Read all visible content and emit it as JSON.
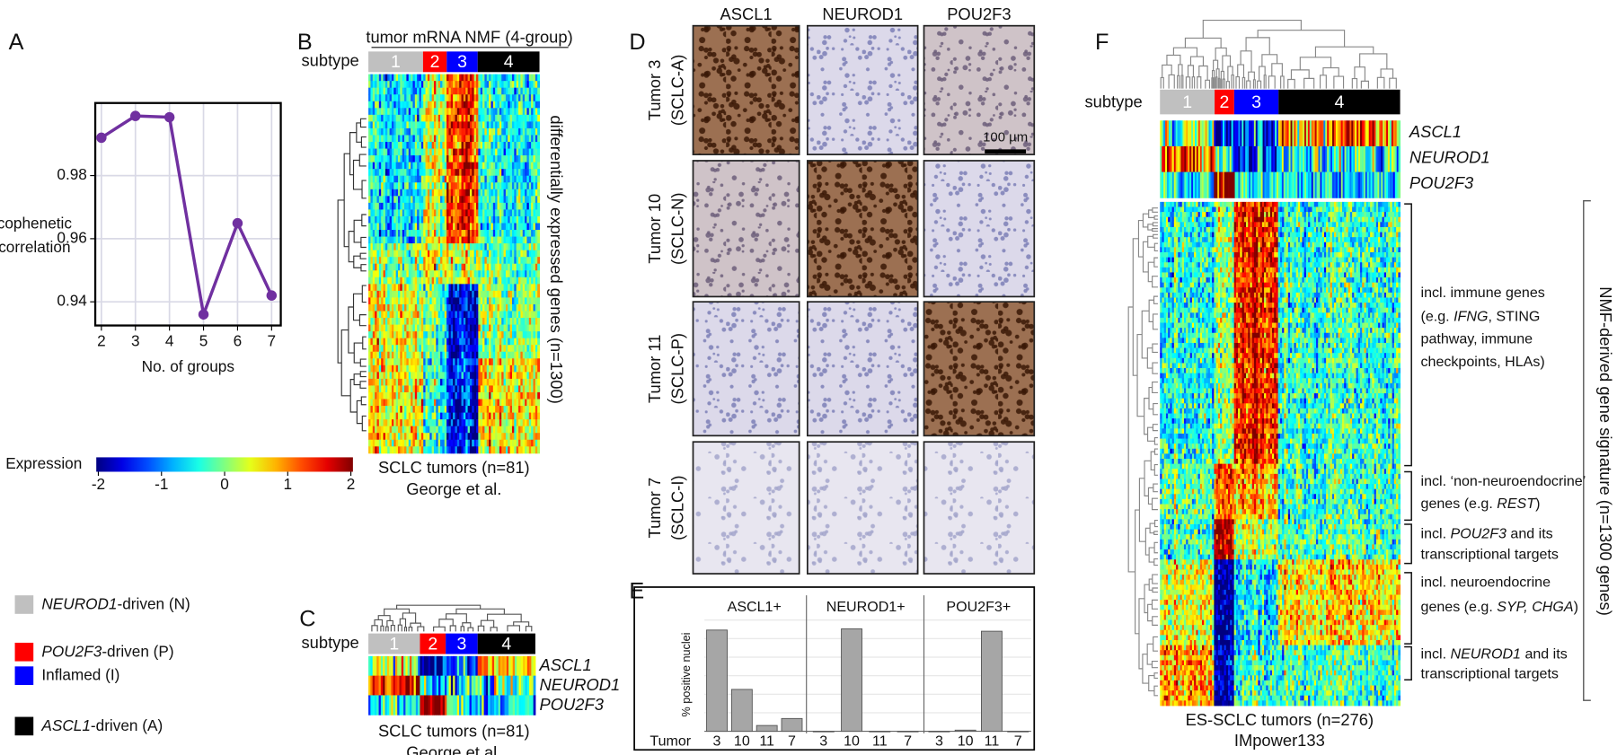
{
  "A": {
    "label": "A",
    "chart": {
      "type": "line",
      "x": [
        2,
        3,
        4,
        5,
        6,
        7
      ],
      "values": [
        0.992,
        0.9989,
        0.9985,
        0.936,
        0.9649,
        0.942
      ],
      "xlim": [
        1.82,
        7.27
      ],
      "ylim": [
        0.9325,
        1.003
      ],
      "xticks": [
        2,
        3,
        4,
        5,
        6,
        7
      ],
      "yticks": [
        0.94,
        0.96,
        0.98
      ],
      "x_label": "No. of groups",
      "y_label": [
        "cophenetic",
        "correlation"
      ],
      "color": "#7030a0",
      "grid": true
    }
  },
  "colorbar": {
    "title": "Expression",
    "ticks": [
      -2,
      -1,
      0,
      1,
      2
    ]
  },
  "legend": [
    {
      "italic": "NEUROD1",
      "text": "-driven (N)",
      "color": "#c0c0c0"
    },
    {
      "italic": "POU2F3",
      "text": "-driven (P)",
      "color": "#ff0000"
    },
    {
      "text": "Inflamed (I)",
      "color": "#0000ff"
    },
    {
      "italic": "ASCL1",
      "text": "-driven (A)",
      "color": "#000000"
    }
  ],
  "B": {
    "label": "B",
    "title": "tumor mRNA NMF (4-group)",
    "subtype_label": "subtype",
    "groups": [
      "1",
      "2",
      "3",
      "4"
    ],
    "side_label": "differentially expressed genes (n=1300)",
    "footer": [
      "SCLC tumors (n=81)",
      "George et al."
    ]
  },
  "C": {
    "label": "C",
    "subtype_label": "subtype",
    "groups": [
      "1",
      "2",
      "3",
      "4"
    ],
    "genes": [
      "ASCL1",
      "NEUROD1",
      "POU2F3"
    ],
    "footer": [
      "SCLC tumors (n=81)",
      "George et al."
    ]
  },
  "D": {
    "label": "D",
    "columns": [
      "ASCL1",
      "NEUROD1",
      "POU2F3"
    ],
    "rows": [
      [
        "Tumor 3",
        "(SCLC-A)"
      ],
      [
        "Tumor 10",
        "(SCLC-N)"
      ],
      [
        "Tumor 11",
        "(SCLC-P)"
      ],
      [
        "Tumor 7",
        "(SCLC-I)"
      ]
    ],
    "scale_bar": "100 µm"
  },
  "E": {
    "label": "E",
    "chart": {
      "type": "bar",
      "y_label": "% positive nuclei",
      "x_label": "Tumor",
      "categories": [
        "3",
        "10",
        "11",
        "7"
      ],
      "ylim": [
        0,
        100
      ],
      "color": "#a6a6a6",
      "series": [
        {
          "name": "ASCL1+",
          "values": [
            87,
            36,
            5,
            11
          ]
        },
        {
          "name": "NEUROD1+",
          "values": [
            0,
            88,
            0,
            0
          ]
        },
        {
          "name": "POU2F3+",
          "values": [
            0,
            1,
            86,
            0
          ]
        }
      ]
    }
  },
  "F": {
    "label": "F",
    "subtype_label": "subtype",
    "groups": [
      "1",
      "2",
      "3",
      "4"
    ],
    "genes": [
      "ASCL1",
      "NEUROD1",
      "POU2F3"
    ],
    "annotations": [
      {
        "lines": [
          [
            "incl. immune genes"
          ],
          [
            "(e.g. ",
            {
              "italic": "IFNG"
            },
            ", STING"
          ],
          [
            "pathway, immune"
          ],
          [
            "checkpoints, HLAs)"
          ]
        ]
      },
      {
        "lines": [
          [
            "incl. ‘non-neuroendocrine’"
          ],
          [
            "genes (e.g. ",
            {
              "italic": "REST"
            },
            ")"
          ]
        ]
      },
      {
        "lines": [
          [
            "incl. ",
            {
              "italic": "POU2F3"
            },
            " and its"
          ],
          [
            "transcriptional targets"
          ]
        ]
      },
      {
        "lines": [
          [
            "incl. neuroendocrine"
          ],
          [
            "genes (e.g. ",
            {
              "italic": "SYP, CHGA"
            },
            ")"
          ]
        ]
      },
      {
        "lines": [
          [
            "incl. ",
            {
              "italic": "NEUROD1"
            },
            " and its"
          ],
          [
            "transcriptional targets"
          ]
        ]
      }
    ],
    "side_label": "NMF-derived gene signature (n=1300 genes)",
    "footer": [
      "ES-SCLC tumors (n=276)",
      "IMpower133"
    ]
  }
}
